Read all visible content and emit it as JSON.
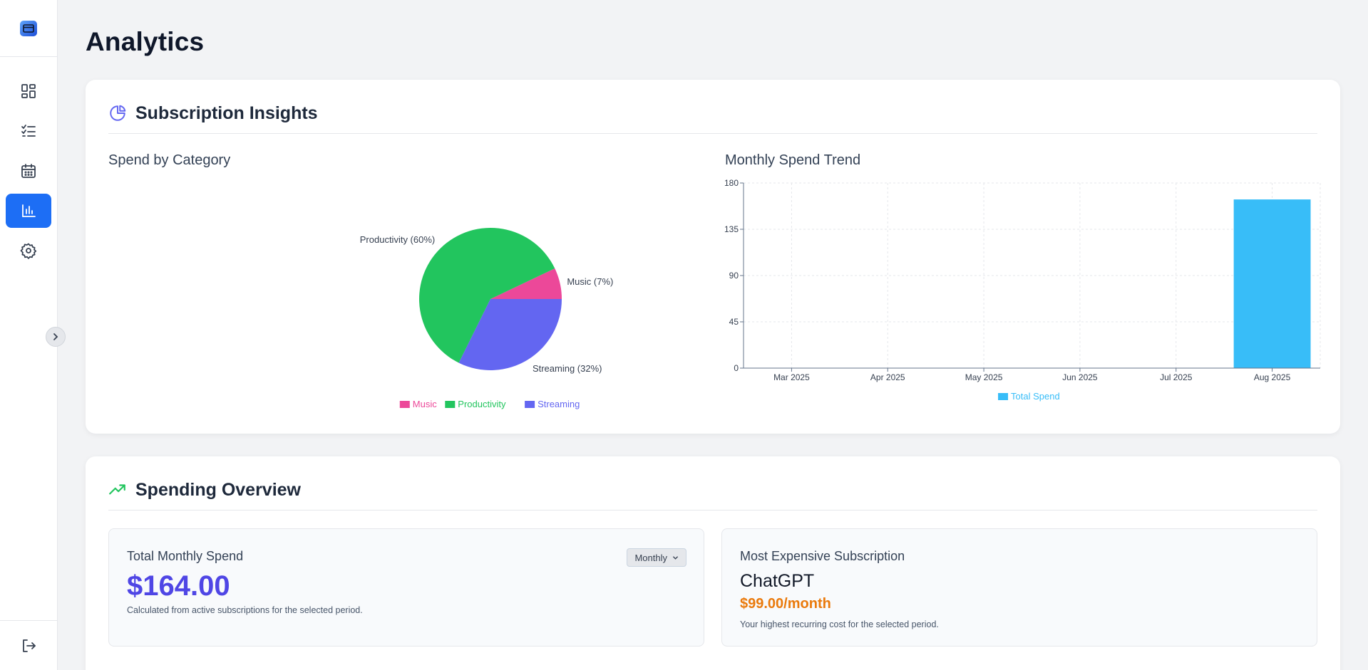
{
  "page": {
    "title": "Analytics"
  },
  "sidebar": {
    "items": [
      {
        "icon": "dashboard-icon",
        "active": false
      },
      {
        "icon": "checklist-icon",
        "active": false
      },
      {
        "icon": "calendar-icon",
        "active": false
      },
      {
        "icon": "bar-chart-icon",
        "active": true
      },
      {
        "icon": "gear-icon",
        "active": false
      }
    ],
    "bottom_icon": "logout-icon",
    "accent": "#1d6ef5"
  },
  "insights": {
    "title": "Subscription Insights",
    "pie_title": "Spend by Category",
    "bar_title": "Monthly Spend Trend"
  },
  "overview": {
    "title": "Spending Overview",
    "total": {
      "title": "Total Monthly Spend",
      "period": "Monthly",
      "amount": "$164.00",
      "note": "Calculated from active subscriptions for the selected period."
    },
    "expensive": {
      "title": "Most Expensive Subscription",
      "name": "ChatGPT",
      "price": "$99.00/month",
      "note": "Your highest recurring cost for the selected period."
    }
  },
  "chart_data": [
    {
      "type": "pie",
      "title": "Spend by Category",
      "slices": [
        {
          "name": "Music",
          "value": 7,
          "label": "Music (7%)",
          "color": "#ec4899"
        },
        {
          "name": "Productivity",
          "value": 60,
          "label": "Productivity (60%)",
          "color": "#22c55e"
        },
        {
          "name": "Streaming",
          "value": 32,
          "label": "Streaming (32%)",
          "color": "#6366f1"
        }
      ],
      "legend": [
        "Music",
        "Productivity",
        "Streaming"
      ]
    },
    {
      "type": "bar",
      "title": "Monthly Spend Trend",
      "categories": [
        "Mar 2025",
        "Apr 2025",
        "May 2025",
        "Jun 2025",
        "Jul 2025",
        "Aug 2025"
      ],
      "series": [
        {
          "name": "Total Spend",
          "values": [
            0,
            0,
            0,
            0,
            0,
            164
          ],
          "color": "#38bdf8"
        }
      ],
      "ylim": [
        0,
        180
      ],
      "yticks": [
        0,
        45,
        90,
        135,
        180
      ],
      "grid": true,
      "legend": "bottom"
    }
  ]
}
